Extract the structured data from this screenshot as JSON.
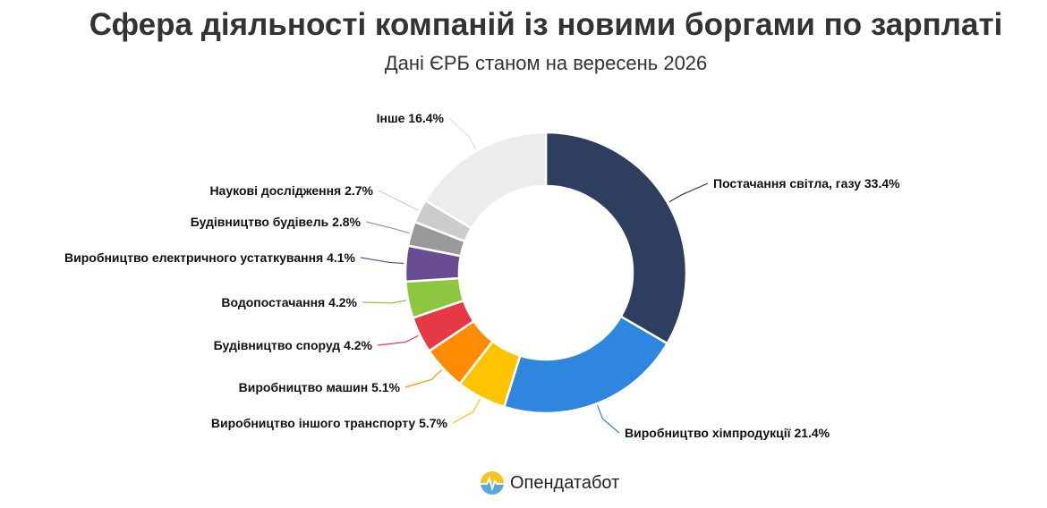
{
  "title": "Сфера діяльності компаній із новими боргами по зарплаті",
  "subtitle": "Дані ЄРБ станом на вересень 2026",
  "brand": {
    "name": "Опендатабот",
    "icon": "opendatabot-logo-icon",
    "colors": [
      "#f7c321",
      "#5aa7de"
    ]
  },
  "chart_data": {
    "type": "pie",
    "variant": "donut",
    "title": "Сфера діяльності компаній із новими боргами по зарплаті",
    "subtitle": "Дані ЄРБ станом на вересень 2026",
    "unit": "%",
    "slices": [
      {
        "label": "Постачання світла, газу",
        "value": 33.4,
        "color": "#2d3e5e"
      },
      {
        "label": "Виробництво хімпродукції",
        "value": 21.4,
        "color": "#2e86de"
      },
      {
        "label": "Виробництво іншого транспорту",
        "value": 5.7,
        "color": "#ffc300"
      },
      {
        "label": "Виробництво машин",
        "value": 5.1,
        "color": "#ff8c00"
      },
      {
        "label": "Будівництво споруд",
        "value": 4.2,
        "color": "#e63946"
      },
      {
        "label": "Водопостачання",
        "value": 4.2,
        "color": "#8dc63f"
      },
      {
        "label": "Виробництво електричного устаткування",
        "value": 4.1,
        "color": "#6a4c93"
      },
      {
        "label": "Будівництво будівель",
        "value": 2.8,
        "color": "#999999"
      },
      {
        "label": "Наукові дослідження",
        "value": 2.7,
        "color": "#cccccc"
      },
      {
        "label": "Інше",
        "value": 16.4,
        "color": "#ececec"
      }
    ]
  }
}
